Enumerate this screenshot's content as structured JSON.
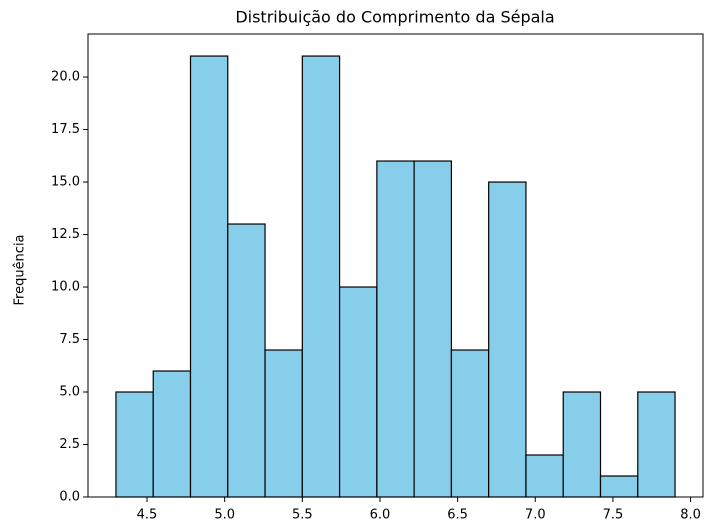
{
  "chart_data": {
    "type": "histogram",
    "title": "Distribuição do Comprimento da Sépala",
    "y_label": "Frequência",
    "bins": [
      4.3,
      4.54,
      4.78,
      5.02,
      5.26,
      5.5,
      5.74,
      5.98,
      6.22,
      6.46,
      6.7,
      6.94,
      7.18,
      7.42,
      7.66,
      7.9
    ],
    "values": [
      5,
      6,
      21,
      13,
      7,
      21,
      10,
      16,
      16,
      7,
      15,
      2,
      5,
      1,
      5
    ],
    "color": "#87ceeb",
    "edgecolor": "#000000",
    "xlim": [
      4.12,
      8.08
    ],
    "ylim": [
      0,
      22.05
    ],
    "xticks": [
      4.5,
      {
        "value": 5,
        "label": "5.0"
      },
      5.5,
      {
        "value": 6,
        "label": "6.0"
      },
      6.5,
      {
        "value": 7,
        "label": "7.0"
      },
      7.5,
      {
        "value": 8,
        "label": "8.0"
      }
    ],
    "yticks": [
      {
        "value": 0,
        "label": "0.0"
      },
      2.5,
      {
        "value": 5,
        "label": "5.0"
      },
      7.5,
      {
        "value": 10,
        "label": "10.0"
      },
      12.5,
      {
        "value": 15,
        "label": "15.0"
      },
      17.5,
      {
        "value": 20,
        "label": "20.0"
      }
    ]
  }
}
